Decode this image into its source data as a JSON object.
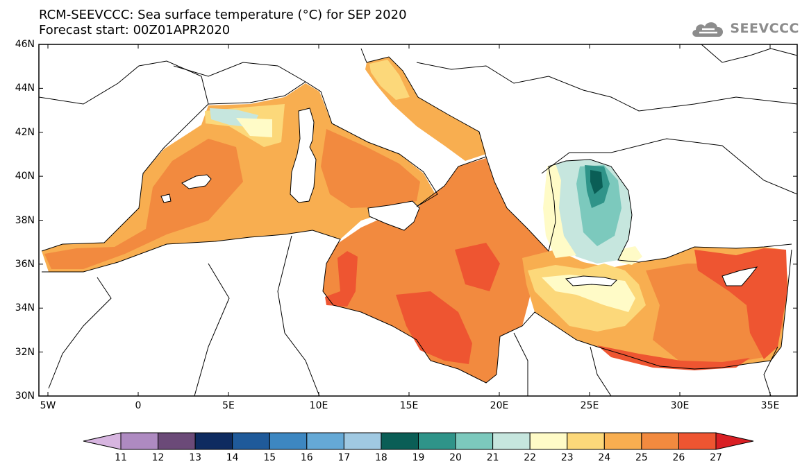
{
  "title_line1": "RCM-SEEVCCC: Sea surface temperature (°C) for SEP 2020",
  "title_line2": "Forecast start: 00Z01APR2020",
  "logo": {
    "text": "SEEVCCC",
    "icon": "cloud-logo-icon",
    "color": "#8c8c8c"
  },
  "map": {
    "projection": "lat-lon",
    "lat_range": [
      30,
      46
    ],
    "lon_range": [
      -5.5,
      36.5
    ],
    "lat_ticks": [
      "30N",
      "32N",
      "34N",
      "36N",
      "38N",
      "40N",
      "42N",
      "44N",
      "46N"
    ],
    "lon_ticks": [
      "5W",
      "0",
      "5E",
      "10E",
      "15E",
      "20E",
      "25E",
      "30E",
      "35E"
    ],
    "land_color": "#ffffff",
    "coastline_color": "#000000"
  },
  "colorbar": {
    "labels": [
      "11",
      "12",
      "13",
      "14",
      "15",
      "16",
      "17",
      "18",
      "19",
      "20",
      "21",
      "22",
      "23",
      "24",
      "25",
      "26",
      "27"
    ],
    "colors": [
      "#d7b5e0",
      "#ae8ac1",
      "#6b4a78",
      "#0e2b60",
      "#1f5a9a",
      "#3d87c1",
      "#65a9d6",
      "#a0c9e2",
      "#0a5e56",
      "#2f9489",
      "#7cc9bd",
      "#c6e6de",
      "#fffbc7",
      "#fcd87a",
      "#f8ae50",
      "#f28a3f",
      "#ee5531",
      "#d91f24"
    ]
  }
}
